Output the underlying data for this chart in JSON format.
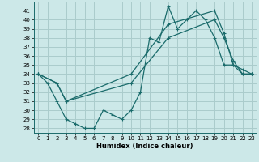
{
  "xlabel": "Humidex (Indice chaleur)",
  "bg_color": "#cce8e8",
  "line_color": "#1a6b6b",
  "grid_color": "#aacccc",
  "xlim": [
    -0.5,
    23.5
  ],
  "ylim": [
    27.5,
    42.0
  ],
  "xticks": [
    0,
    1,
    2,
    3,
    4,
    5,
    6,
    7,
    8,
    9,
    10,
    11,
    12,
    13,
    14,
    15,
    16,
    17,
    18,
    19,
    20,
    21,
    22,
    23
  ],
  "yticks": [
    28,
    29,
    30,
    31,
    32,
    33,
    34,
    35,
    36,
    37,
    38,
    39,
    40,
    41
  ],
  "series1_x": [
    0,
    1,
    2,
    3,
    4,
    5,
    6,
    7,
    8,
    9,
    10,
    11,
    12,
    13,
    14,
    15,
    16,
    17,
    18,
    19,
    20,
    21,
    22,
    23
  ],
  "series1_y": [
    34,
    33,
    31,
    29,
    28.5,
    28,
    28,
    30,
    29.5,
    29,
    30,
    32,
    38,
    37.5,
    41.5,
    39,
    40,
    41,
    40,
    38,
    35,
    35,
    34,
    34
  ],
  "series2_x": [
    0,
    2,
    3,
    10,
    14,
    19,
    20,
    21,
    22,
    23
  ],
  "series2_y": [
    34,
    33,
    31,
    33,
    38,
    40,
    38,
    35.5,
    34,
    34
  ],
  "series3_x": [
    0,
    2,
    3,
    10,
    14,
    19,
    20,
    21,
    22,
    23
  ],
  "series3_y": [
    34,
    33,
    31,
    34,
    39.5,
    41,
    38.5,
    35,
    34.5,
    34
  ]
}
